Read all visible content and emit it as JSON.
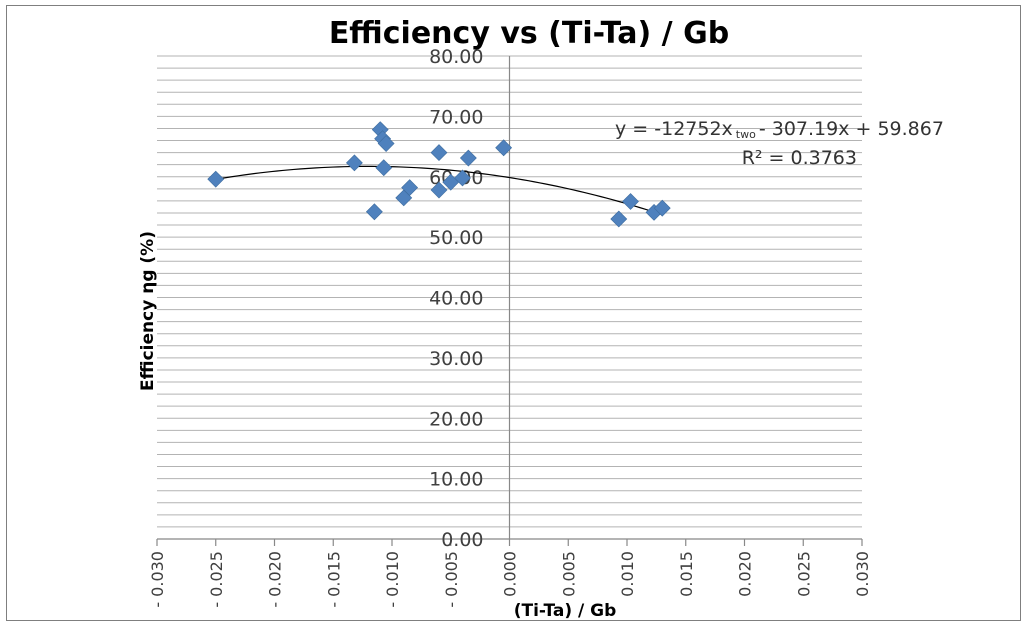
{
  "chart_data": {
    "type": "scatter",
    "title": "Efficiency vs (Ti-Ta) / Gb",
    "xlabel": "(Ti-Ta) / Gb",
    "ylabel": "Efficiency ηg (%)",
    "xlim": [
      -0.03,
      0.03
    ],
    "ylim": [
      0,
      80
    ],
    "x_ticks": [
      "- 0.030",
      "- 0.025",
      "- 0.020",
      "- 0.015",
      "- 0.010",
      "- 0.005",
      "0.000",
      "0.005",
      "0.010",
      "0.015",
      "0.020",
      "0.025",
      "0.030"
    ],
    "x_tick_values": [
      -0.03,
      -0.025,
      -0.02,
      -0.015,
      -0.01,
      -0.005,
      0.0,
      0.005,
      0.01,
      0.015,
      0.02,
      0.025,
      0.03
    ],
    "y_ticks": [
      "0.00",
      "10.00",
      "20.00",
      "30.00",
      "40.00",
      "50.00",
      "60.00",
      "70.00",
      "80.00"
    ],
    "y_tick_values": [
      0,
      10,
      20,
      30,
      40,
      50,
      60,
      70,
      80
    ],
    "y_minor_step": 2,
    "grid": true,
    "series": [
      {
        "marker": "diamond",
        "color": "#4f81bd",
        "points": [
          {
            "x": -0.025,
            "y": 59.6
          },
          {
            "x": -0.0132,
            "y": 62.3
          },
          {
            "x": -0.0115,
            "y": 54.2
          },
          {
            "x": -0.011,
            "y": 67.8
          },
          {
            "x": -0.0108,
            "y": 66.3
          },
          {
            "x": -0.0107,
            "y": 61.5
          },
          {
            "x": -0.0105,
            "y": 65.5
          },
          {
            "x": -0.009,
            "y": 56.5
          },
          {
            "x": -0.0085,
            "y": 58.2
          },
          {
            "x": -0.006,
            "y": 64.0
          },
          {
            "x": -0.006,
            "y": 57.8
          },
          {
            "x": -0.005,
            "y": 59.1
          },
          {
            "x": -0.004,
            "y": 59.8
          },
          {
            "x": -0.0035,
            "y": 63.1
          },
          {
            "x": -0.0005,
            "y": 64.8
          },
          {
            "x": 0.0093,
            "y": 53.0
          },
          {
            "x": 0.0103,
            "y": 55.9
          },
          {
            "x": 0.0123,
            "y": 54.1
          },
          {
            "x": 0.013,
            "y": 54.8
          }
        ]
      }
    ],
    "trendline": {
      "type": "polynomial",
      "order": 2,
      "coefficients": {
        "a": -12752,
        "b": -307.19,
        "c": 59.867
      },
      "x_range": [
        -0.025,
        0.013
      ],
      "equation_text": "y = -12752x",
      "equation_sub": "two",
      "equation_rest": "- 307.19x + 59.867",
      "r2_text": "R² = 0.3763"
    }
  }
}
